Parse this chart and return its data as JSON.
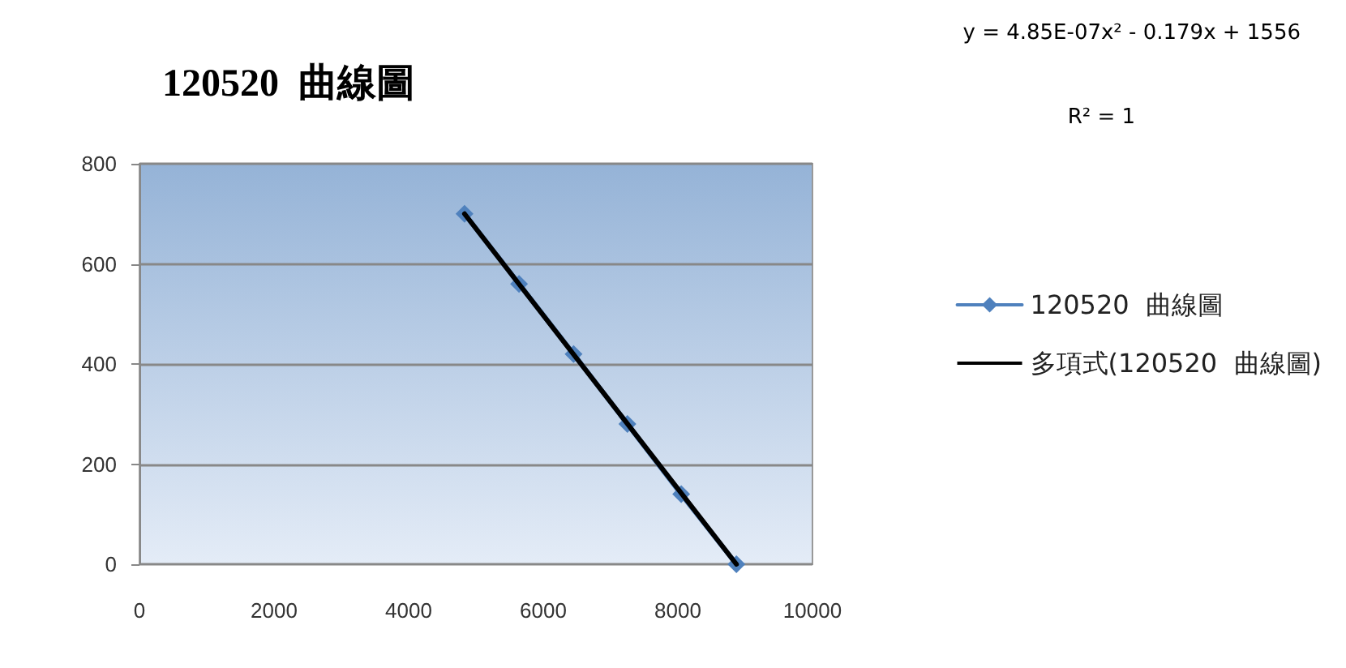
{
  "chart_data": {
    "type": "line",
    "title": "120520  曲線圖",
    "x": [
      4830,
      5640,
      6450,
      7250,
      8050,
      8870
    ],
    "series": [
      {
        "name": "120520  曲線圖",
        "color": "#4f81bd",
        "marker": "diamond",
        "values": [
          700,
          560,
          420,
          280,
          140,
          0
        ]
      },
      {
        "name": "多項式(120520  曲線圖)",
        "color": "#000000",
        "type": "line",
        "marker": "none",
        "x": [
          4830,
          8870
        ],
        "values": [
          700,
          0
        ]
      }
    ],
    "xlim": [
      0,
      10000
    ],
    "xticks": [
      0,
      2000,
      4000,
      6000,
      8000,
      10000
    ],
    "ylim": [
      0,
      800
    ],
    "yticks": [
      0,
      200,
      400,
      600,
      800
    ],
    "grid": "y",
    "legend": "right",
    "annotations": [
      "y = 4.85E-07x² - 0.179x + 1556",
      "R² = 1"
    ]
  }
}
